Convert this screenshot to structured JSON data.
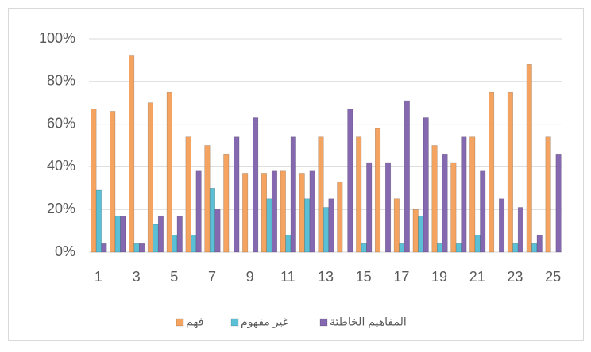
{
  "chart_data": {
    "type": "bar",
    "categories": [
      "1",
      null,
      "3",
      null,
      "5",
      null,
      "7",
      null,
      "9",
      null,
      "11",
      null,
      "13",
      null,
      "15",
      null,
      "17",
      null,
      "19",
      null,
      "21",
      null,
      "23",
      null,
      "25"
    ],
    "series": [
      {
        "name": "فهم",
        "color": "#f4a460",
        "values": [
          67,
          66,
          92,
          70,
          75,
          54,
          50,
          46,
          37,
          37,
          38,
          37,
          54,
          33,
          54,
          58,
          25,
          20,
          50,
          42,
          54,
          75,
          75,
          88,
          54
        ]
      },
      {
        "name": "غير مفهوم",
        "color": "#5bc0d6",
        "values": [
          29,
          17,
          4,
          13,
          8,
          8,
          30,
          0,
          0,
          25,
          8,
          25,
          21,
          0,
          4,
          0,
          4,
          17,
          4,
          4,
          8,
          0,
          4,
          4,
          0
        ]
      },
      {
        "name": "المفاهيم الخاطئة",
        "color": "#8468b0",
        "values": [
          4,
          17,
          4,
          17,
          17,
          38,
          20,
          54,
          63,
          38,
          54,
          38,
          25,
          67,
          42,
          42,
          71,
          63,
          46,
          54,
          38,
          25,
          21,
          8,
          46
        ]
      }
    ],
    "ylim": [
      0,
      100
    ],
    "yticks": [
      {
        "value": 0,
        "label": "0%"
      },
      {
        "value": 20,
        "label": "20%"
      },
      {
        "value": 40,
        "label": "40%"
      },
      {
        "value": 60,
        "label": "60%"
      },
      {
        "value": 80,
        "label": "80%"
      },
      {
        "value": 100,
        "label": "100%"
      }
    ],
    "grid": true,
    "legend": "bottom"
  }
}
